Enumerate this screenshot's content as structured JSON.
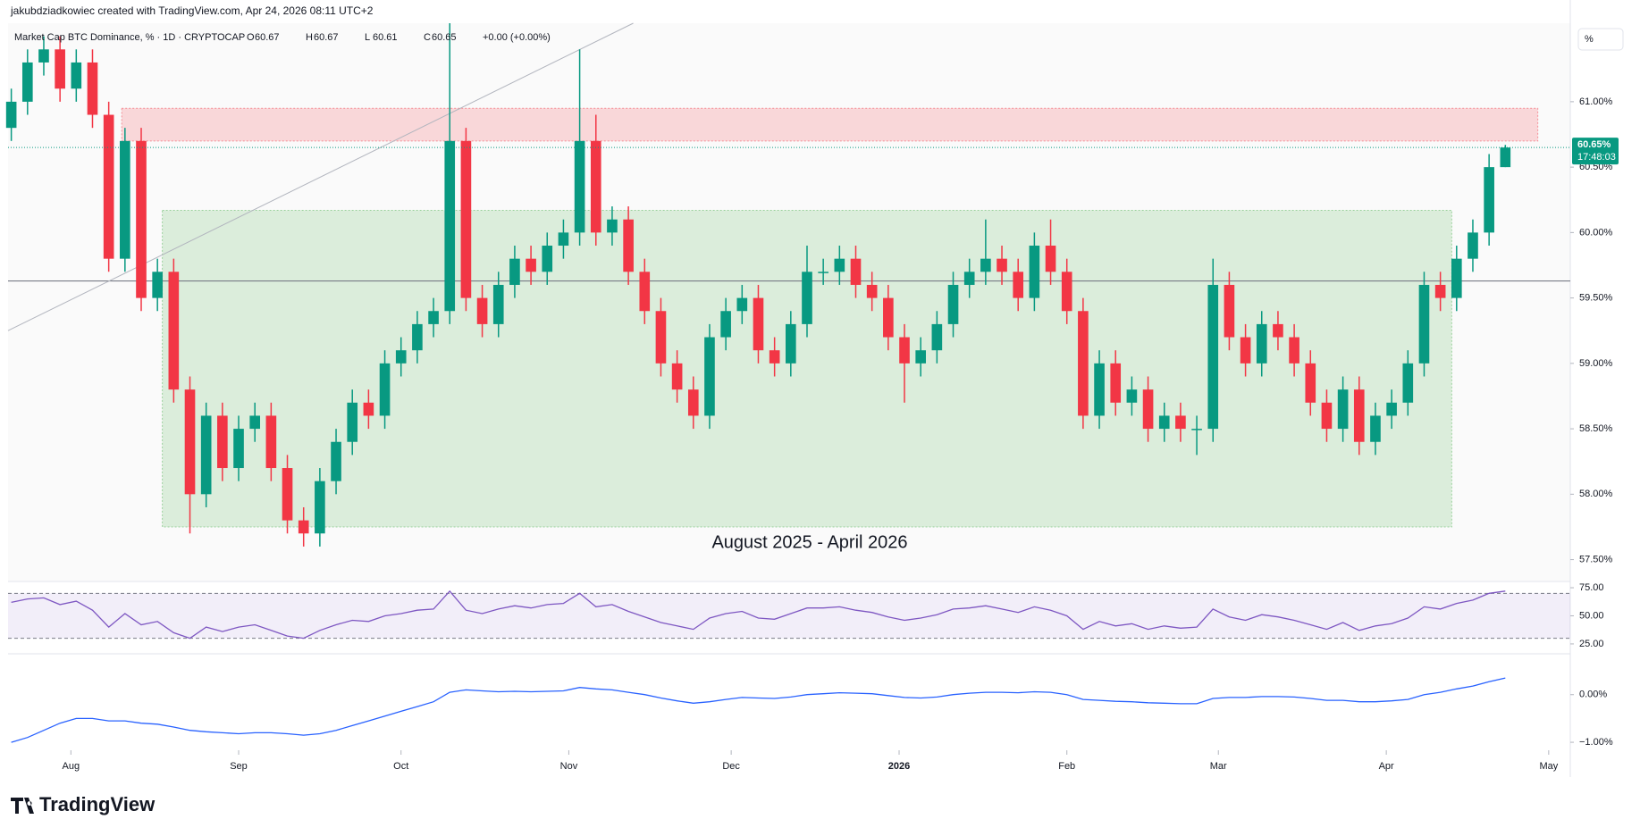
{
  "header": {
    "author_line": "jakubdziadkowiec created with TradingView.com, Apr 24, 2026 08:11 UTC+2",
    "symbol": "Market Cap BTC Dominance, % · 1D · CRYPTOCAP",
    "ohlc": [
      {
        "key": "O",
        "value": 60.67
      },
      {
        "key": "H",
        "value": 60.67
      },
      {
        "key": "L",
        "value": 60.61
      },
      {
        "key": "C",
        "value": 60.65
      }
    ],
    "change": "+0.00 (+0.00%)",
    "unit_button": "%"
  },
  "logo": "TradingView",
  "chart_data": {
    "type": "candlestick",
    "annotation": "August 2025 - April 2026",
    "up_color": "#089981",
    "down_color": "#f23645",
    "xlim": [
      -0.2,
      96
    ],
    "xticks": [
      {
        "value": 3.67,
        "label": "Aug"
      },
      {
        "value": 14,
        "label": "Sep"
      },
      {
        "value": 24,
        "label": "Oct"
      },
      {
        "value": 34.33,
        "label": "Nov"
      },
      {
        "value": 44.33,
        "label": "Dec"
      },
      {
        "value": 54.67,
        "label": "2026"
      },
      {
        "value": 65,
        "label": "Feb"
      },
      {
        "value": 74.33,
        "label": "Mar"
      },
      {
        "value": 84.67,
        "label": "Apr"
      },
      {
        "value": 94.67,
        "label": "May"
      }
    ],
    "ylim": [
      57.34,
      61.6
    ],
    "yticks": [
      {
        "value": 57.5,
        "label": "57.50%"
      },
      {
        "value": 58,
        "label": "58.00%"
      },
      {
        "value": 58.5,
        "label": "58.50%"
      },
      {
        "value": 59,
        "label": "59.00%"
      },
      {
        "value": 59.5,
        "label": "59.50%"
      },
      {
        "value": 60,
        "label": "60.00%"
      },
      {
        "value": 60.5,
        "label": "60.50%"
      },
      {
        "value": 61,
        "label": "61.00%"
      }
    ],
    "price_label": {
      "value": 60.65,
      "label": "60.65%",
      "countdown": "17:48:03"
    },
    "zones": [
      {
        "x": [
          6.8,
          94
        ],
        "y": [
          60.7,
          60.95
        ],
        "color": "#f23645"
      },
      {
        "x": [
          9.3,
          88.7
        ],
        "y": [
          57.75,
          60.17
        ],
        "color": "#4caf50"
      }
    ],
    "hline": 59.63,
    "trendline": {
      "x": [
        -0.2,
        38.3
      ],
      "y": [
        59.25,
        61.6
      ]
    },
    "open": [
      60.8,
      61.0,
      61.3,
      61.4,
      61.1,
      61.3,
      60.9,
      59.8,
      60.7,
      59.5,
      59.7,
      58.8,
      58.0,
      58.6,
      58.2,
      58.5,
      58.6,
      58.2,
      57.8,
      57.7,
      58.1,
      58.4,
      58.7,
      58.6,
      59.0,
      59.1,
      59.3,
      59.4,
      60.7,
      59.5,
      59.3,
      59.6,
      59.8,
      59.7,
      59.9,
      60.0,
      60.7,
      60.0,
      60.1,
      59.7,
      59.4,
      59.0,
      58.8,
      58.6,
      59.2,
      59.4,
      59.5,
      59.1,
      59.0,
      59.3,
      59.7,
      59.7,
      59.8,
      59.6,
      59.5,
      59.2,
      59.0,
      59.1,
      59.3,
      59.6,
      59.7,
      59.8,
      59.7,
      59.5,
      59.9,
      59.7,
      59.4,
      58.6,
      59.0,
      58.7,
      58.8,
      58.5,
      58.6,
      58.5,
      58.5,
      59.6,
      59.2,
      59.0,
      59.3,
      59.2,
      59.0,
      58.7,
      58.5,
      58.8,
      58.4,
      58.6,
      58.7,
      59.0,
      59.6,
      59.5,
      59.8,
      60.0,
      60.5
    ],
    "high": [
      61.1,
      61.4,
      61.5,
      61.5,
      61.4,
      61.4,
      61.0,
      60.8,
      60.8,
      59.8,
      59.8,
      58.9,
      58.7,
      58.7,
      58.6,
      58.7,
      58.7,
      58.3,
      57.9,
      58.2,
      58.5,
      58.8,
      58.8,
      59.1,
      59.2,
      59.4,
      59.5,
      61.6,
      60.8,
      59.6,
      59.7,
      59.9,
      59.9,
      60.0,
      60.1,
      61.4,
      60.9,
      60.2,
      60.2,
      59.8,
      59.5,
      59.1,
      58.9,
      59.3,
      59.5,
      59.6,
      59.6,
      59.2,
      59.4,
      59.9,
      59.8,
      59.9,
      59.9,
      59.7,
      59.6,
      59.3,
      59.2,
      59.4,
      59.7,
      59.8,
      60.1,
      59.9,
      59.8,
      60.0,
      60.1,
      59.8,
      59.5,
      59.1,
      59.1,
      58.9,
      58.9,
      58.7,
      58.7,
      58.6,
      59.8,
      59.7,
      59.3,
      59.4,
      59.4,
      59.3,
      59.1,
      58.8,
      58.9,
      58.9,
      58.7,
      58.8,
      59.1,
      59.7,
      59.7,
      59.9,
      60.1,
      60.6,
      60.67
    ],
    "low": [
      60.7,
      60.9,
      61.2,
      61.0,
      61.0,
      60.8,
      59.7,
      59.7,
      59.4,
      59.4,
      58.7,
      57.7,
      57.9,
      58.1,
      58.1,
      58.4,
      58.1,
      57.7,
      57.6,
      57.6,
      58.0,
      58.3,
      58.5,
      58.5,
      58.9,
      59.0,
      59.2,
      59.3,
      59.4,
      59.2,
      59.2,
      59.5,
      59.6,
      59.6,
      59.8,
      59.9,
      59.9,
      59.9,
      59.6,
      59.3,
      58.9,
      58.7,
      58.5,
      58.5,
      59.1,
      59.3,
      59.0,
      58.9,
      58.9,
      59.2,
      59.6,
      59.6,
      59.5,
      59.4,
      59.1,
      58.7,
      58.9,
      59.0,
      59.2,
      59.5,
      59.6,
      59.6,
      59.4,
      59.4,
      59.6,
      59.3,
      58.5,
      58.5,
      58.6,
      58.6,
      58.4,
      58.4,
      58.4,
      58.3,
      58.4,
      59.1,
      58.9,
      58.9,
      59.1,
      58.9,
      58.6,
      58.4,
      58.4,
      58.3,
      58.3,
      58.5,
      58.6,
      58.9,
      59.4,
      59.4,
      59.7,
      59.9,
      60.5
    ],
    "close": [
      61.0,
      61.3,
      61.4,
      61.1,
      61.3,
      60.9,
      59.8,
      60.7,
      59.5,
      59.7,
      58.8,
      58.0,
      58.6,
      58.2,
      58.5,
      58.6,
      58.2,
      57.8,
      57.7,
      58.1,
      58.4,
      58.7,
      58.6,
      59.0,
      59.1,
      59.3,
      59.4,
      60.7,
      59.5,
      59.3,
      59.6,
      59.8,
      59.7,
      59.9,
      60.0,
      60.7,
      60.0,
      60.1,
      59.7,
      59.4,
      59.0,
      58.8,
      58.6,
      59.2,
      59.4,
      59.5,
      59.1,
      59.0,
      59.3,
      59.7,
      59.7,
      59.8,
      59.6,
      59.5,
      59.2,
      59.0,
      59.1,
      59.3,
      59.6,
      59.7,
      59.8,
      59.7,
      59.5,
      59.9,
      59.7,
      59.4,
      58.6,
      59.0,
      58.7,
      58.8,
      58.5,
      58.6,
      58.5,
      58.5,
      59.6,
      59.2,
      59.0,
      59.3,
      59.2,
      59.0,
      58.7,
      58.5,
      58.8,
      58.4,
      58.6,
      58.7,
      59.0,
      59.6,
      59.5,
      59.8,
      60.0,
      60.5,
      60.65
    ],
    "rsi": {
      "type": "line",
      "color": "#7e57c2",
      "ylim": [
        17,
        79
      ],
      "band": [
        30,
        70
      ],
      "yticks": [
        {
          "value": 25,
          "label": "25.00"
        },
        {
          "value": 50,
          "label": "50.00"
        },
        {
          "value": 75,
          "label": "75.00"
        }
      ],
      "values": [
        62,
        65,
        66,
        60,
        63,
        55,
        40,
        52,
        42,
        45,
        35,
        30,
        40,
        36,
        40,
        42,
        37,
        32,
        30,
        37,
        42,
        46,
        45,
        50,
        52,
        55,
        56,
        72,
        55,
        52,
        56,
        59,
        57,
        60,
        61,
        70,
        58,
        60,
        54,
        49,
        44,
        41,
        38,
        48,
        52,
        54,
        48,
        47,
        52,
        57,
        57,
        58,
        55,
        53,
        49,
        46,
        48,
        51,
        56,
        57,
        59,
        56,
        53,
        58,
        55,
        50,
        38,
        45,
        41,
        43,
        38,
        41,
        39,
        40,
        56,
        49,
        46,
        51,
        49,
        46,
        42,
        38,
        44,
        37,
        41,
        43,
        48,
        58,
        56,
        61,
        64,
        70,
        72
      ]
    },
    "macd": {
      "type": "line",
      "color": "#2962ff",
      "ylim": [
        -1.13,
        0.82
      ],
      "yticks": [
        {
          "value": 0,
          "label": "0.00%"
        },
        {
          "value": -1,
          "label": "−1.00%"
        }
      ],
      "values": [
        -1.0,
        -0.9,
        -0.75,
        -0.6,
        -0.5,
        -0.5,
        -0.55,
        -0.55,
        -0.6,
        -0.62,
        -0.68,
        -0.75,
        -0.78,
        -0.8,
        -0.82,
        -0.8,
        -0.8,
        -0.82,
        -0.85,
        -0.82,
        -0.75,
        -0.65,
        -0.55,
        -0.45,
        -0.35,
        -0.25,
        -0.15,
        0.05,
        0.1,
        0.08,
        0.06,
        0.07,
        0.06,
        0.07,
        0.08,
        0.15,
        0.12,
        0.1,
        0.05,
        0.0,
        -0.07,
        -0.13,
        -0.18,
        -0.15,
        -0.1,
        -0.06,
        -0.07,
        -0.08,
        -0.05,
        0.0,
        0.02,
        0.04,
        0.03,
        0.02,
        -0.02,
        -0.06,
        -0.07,
        -0.05,
        0.0,
        0.03,
        0.05,
        0.05,
        0.04,
        0.06,
        0.05,
        0.0,
        -0.1,
        -0.12,
        -0.14,
        -0.15,
        -0.17,
        -0.18,
        -0.19,
        -0.19,
        -0.08,
        -0.06,
        -0.06,
        -0.04,
        -0.04,
        -0.05,
        -0.08,
        -0.12,
        -0.12,
        -0.15,
        -0.15,
        -0.13,
        -0.1,
        0.0,
        0.05,
        0.12,
        0.18,
        0.27,
        0.35
      ]
    }
  }
}
